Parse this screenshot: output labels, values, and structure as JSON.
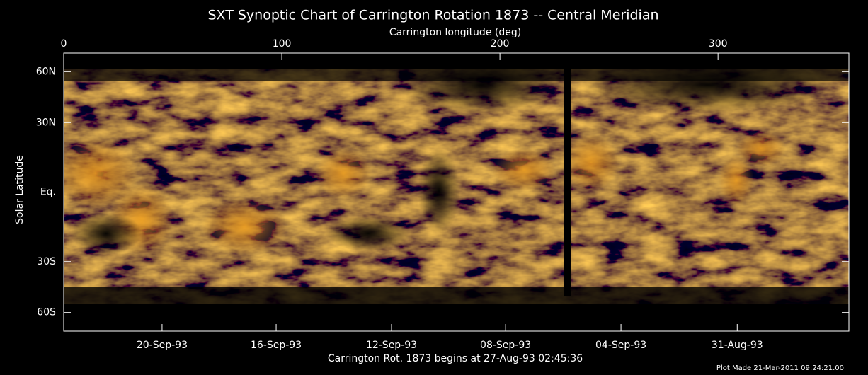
{
  "chart_data": {
    "type": "image",
    "title": "SXT Synoptic Chart of Carrington Rotation 1873 -- Central Meridian",
    "x_label": "Carrington longitude (deg)",
    "y_label": "Solar Latitude",
    "bottom_label": "Carrington Rot. 1873 begins at 27-Aug-93 02:45:36",
    "footnote": "Plot Made 21-Mar-2011 09:24:21.00",
    "xlim": [
      0,
      360
    ],
    "xticks": [
      0,
      100,
      200,
      300
    ],
    "x2ticks": [
      {
        "value": 45.1,
        "label": "20-Sep-93"
      },
      {
        "value": 97.4,
        "label": "16-Sep-93"
      },
      {
        "value": 150.3,
        "label": "12-Sep-93"
      },
      {
        "value": 202.6,
        "label": "08-Sep-93"
      },
      {
        "value": 255.5,
        "label": "04-Sep-93"
      },
      {
        "value": 308.8,
        "label": "31-Aug-93"
      }
    ],
    "ylim": [
      -90,
      90
    ],
    "yscale": "sine",
    "yticks": [
      {
        "value": 60,
        "label": "60N"
      },
      {
        "value": 30,
        "label": "30N"
      },
      {
        "value": 0,
        "label": "Eq."
      },
      {
        "value": -30,
        "label": "30S"
      },
      {
        "value": -60,
        "label": "60S"
      }
    ]
  }
}
